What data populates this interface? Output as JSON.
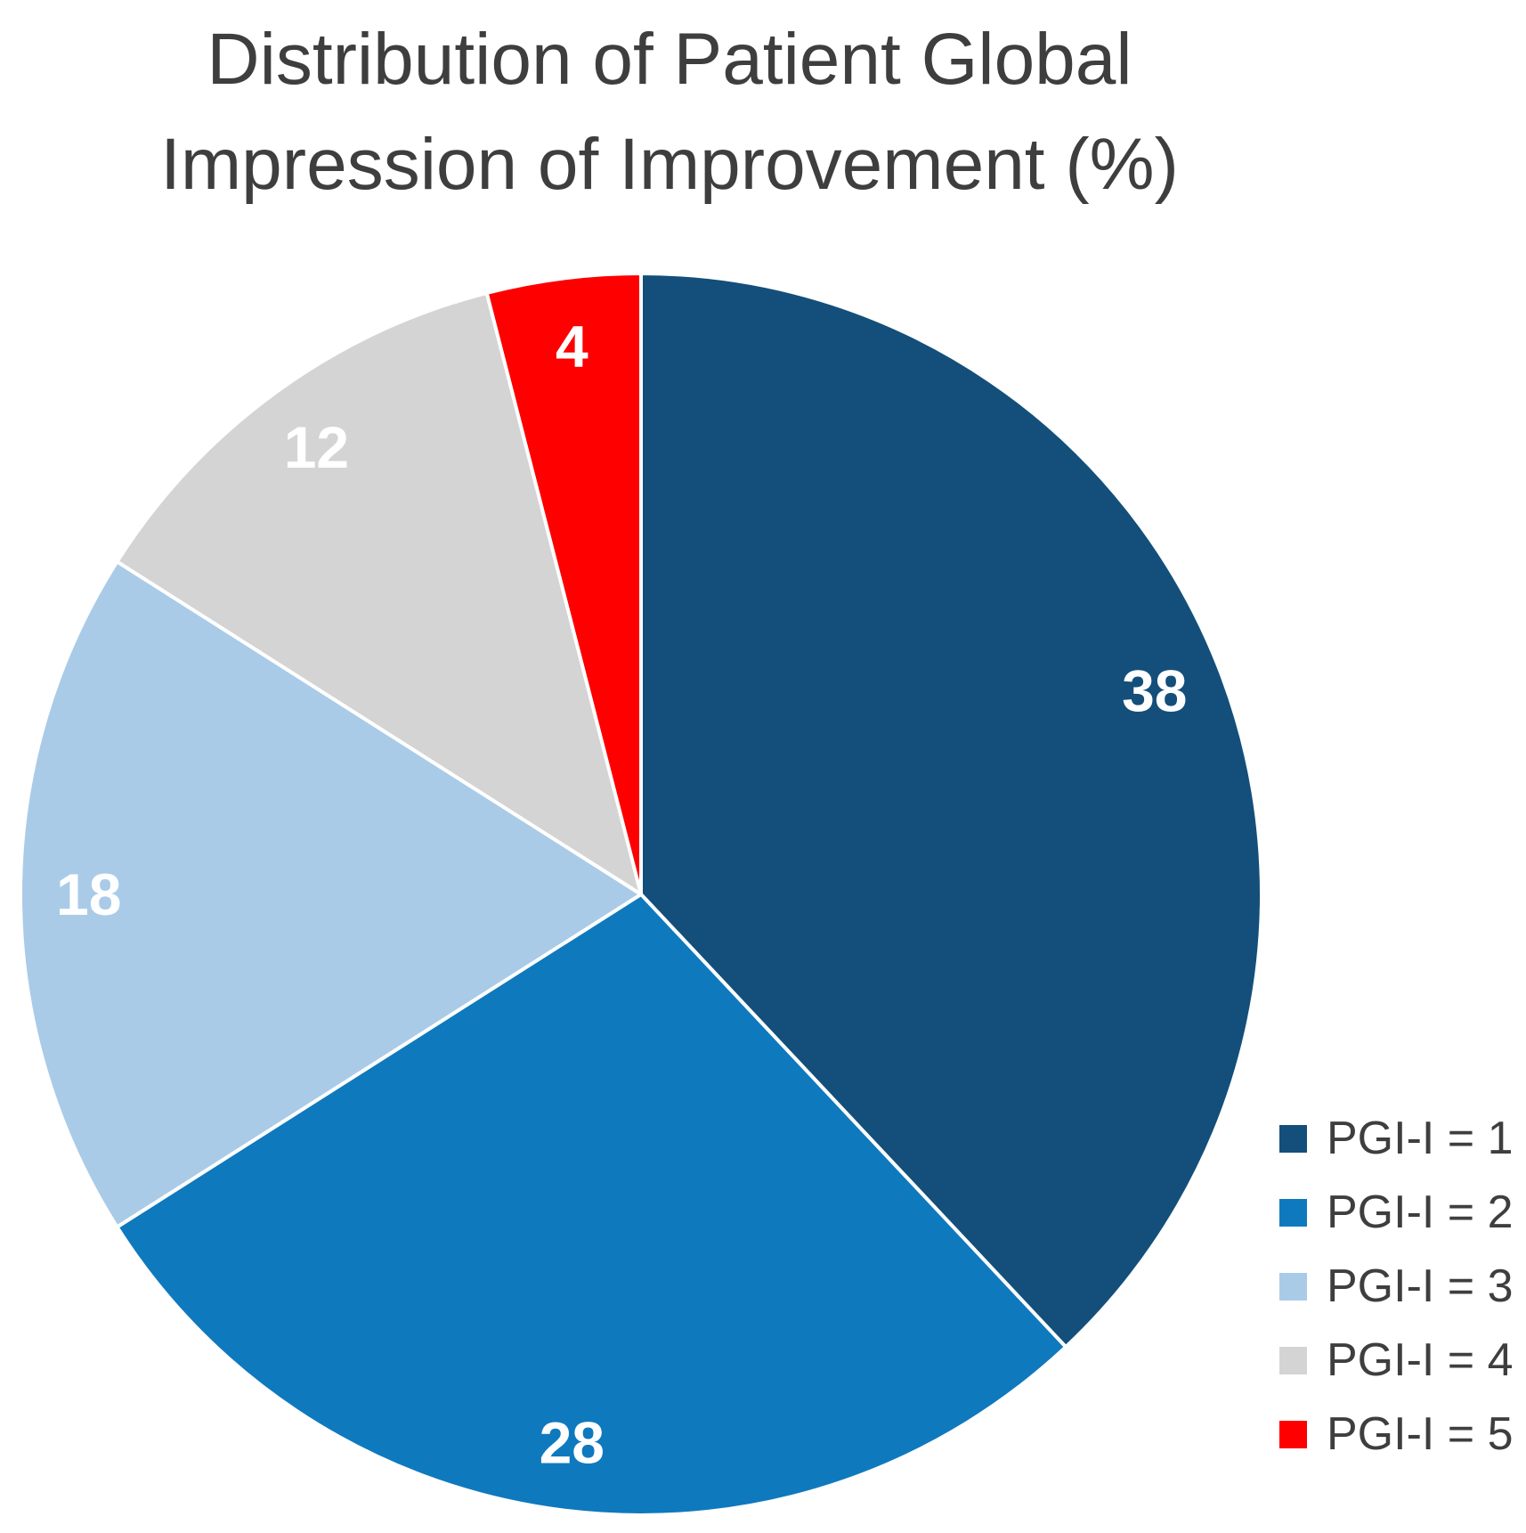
{
  "title": {
    "line1": "Distribution of Patient Global",
    "line2": "Impression of Improvement (%)"
  },
  "colors": {
    "background": "#FFFFFF",
    "title_text": "#3E3E3E",
    "legend_text": "#3E3E3E",
    "slice_label_text": "#FFFFFF",
    "slice_divider": "#FFFFFF"
  },
  "chart_data": {
    "type": "pie",
    "title": "Distribution of Patient Global Impression of Improvement (%)",
    "unit": "percent",
    "start_angle_deg": 0,
    "direction": "clockwise",
    "legend_position": "right",
    "data_labels_shown": true,
    "slices": [
      {
        "label": "PGI-I = 1",
        "value": 38,
        "color": "#134F7A"
      },
      {
        "label": "PGI-I = 2",
        "value": 28,
        "color": "#0F79BE"
      },
      {
        "label": "PGI-I = 3",
        "value": 18,
        "color": "#A9CBE8"
      },
      {
        "label": "PGI-I = 4",
        "value": 12,
        "color": "#D4D4D4"
      },
      {
        "label": "PGI-I = 5",
        "value": 4,
        "color": "#FE0000"
      }
    ]
  }
}
